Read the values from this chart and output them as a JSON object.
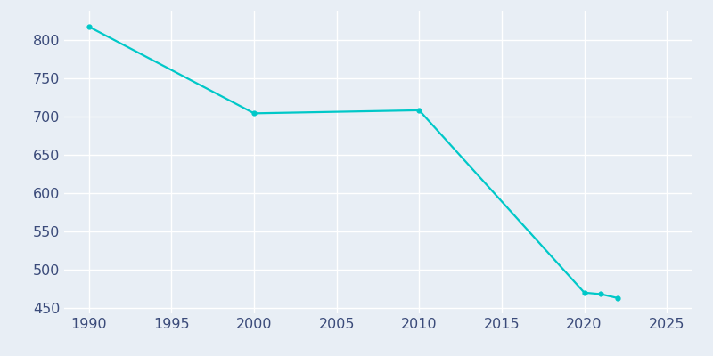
{
  "years": [
    1990,
    2000,
    2010,
    2020,
    2021,
    2022
  ],
  "population": [
    817,
    704,
    708,
    470,
    468,
    463
  ],
  "line_color": "#00C8C8",
  "marker": "o",
  "marker_size": 3.5,
  "line_width": 1.6,
  "background_color": "#E8EEF5",
  "grid_color": "#FFFFFF",
  "tick_color": "#3B4B7A",
  "xlim": [
    1988.5,
    2026.5
  ],
  "ylim": [
    443,
    838
  ],
  "yticks": [
    450,
    500,
    550,
    600,
    650,
    700,
    750,
    800
  ],
  "xticks": [
    1990,
    1995,
    2000,
    2005,
    2010,
    2015,
    2020,
    2025
  ],
  "tick_fontsize": 11.5
}
